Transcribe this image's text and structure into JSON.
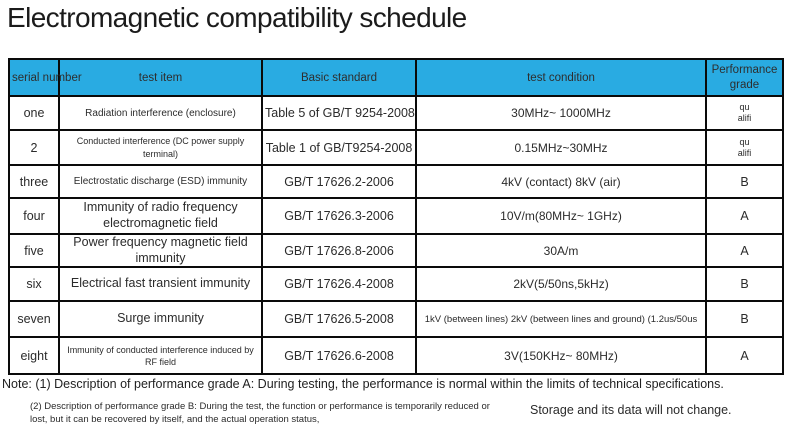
{
  "title": "Electromagnetic compatibility schedule",
  "colors": {
    "header_bg": "#29abe2",
    "border": "#0a0a0a",
    "header_text": "#2e2e2e",
    "performance_header_text": "#1d6fa0",
    "body_text": "#2b2b2b"
  },
  "table": {
    "headers": [
      "serial number",
      "test item",
      "Basic standard",
      "test condition",
      "Performance grade"
    ],
    "rows": [
      {
        "serial": "one",
        "item": "Radiation interference (enclosure)",
        "standard": "Table 5 of GB/T 9254-2008",
        "condition": "30MHz~ 1000MHz",
        "grade": "qu\nalifi"
      },
      {
        "serial": "2",
        "item": "Conducted interference (DC power supply terminal)",
        "standard": "Table 1 of GB/T9254-2008",
        "condition": "0.15MHz~30MHz",
        "grade": "qu\nalifi"
      },
      {
        "serial": "three",
        "item": "Electrostatic discharge (ESD) immunity",
        "standard": "GB/T 17626.2-2006",
        "condition": "4kV (contact) 8kV (air)",
        "grade": "B"
      },
      {
        "serial": "four",
        "item": "Immunity of radio frequency electromagnetic field",
        "standard": "GB/T 17626.3-2006",
        "condition": "10V/m(80MHz~ 1GHz)",
        "grade": "A"
      },
      {
        "serial": "five",
        "item": "Power frequency magnetic field immunity",
        "standard": "GB/T 17626.8-2006",
        "condition": "30A/m",
        "grade": "A"
      },
      {
        "serial": "six",
        "item": "Electrical fast transient immunity",
        "standard": "GB/T 17626.4-2008",
        "condition": "2kV(5/50ns,5kHz)",
        "grade": "B"
      },
      {
        "serial": "seven",
        "item": "Surge immunity",
        "standard": "GB/T 17626.5-2008",
        "condition": "1kV (between lines) 2kV (between lines and ground) (1.2us/50us",
        "grade": "B"
      },
      {
        "serial": "eight",
        "item": "Immunity of conducted interference induced by RF field",
        "standard": "GB/T 17626.6-2008",
        "condition": "3V(150KHz~ 80MHz)",
        "grade": "A"
      }
    ]
  },
  "notes": {
    "note1": "Note: (1) Description of performance grade A: During testing, the performance is normal within the limits of technical specifications.",
    "note2": "(2) Description of performance grade B: During the test, the function or performance is temporarily reduced or lost, but it can be recovered by itself, and the actual operation status,",
    "note2_right": "Storage and its data will not change."
  }
}
